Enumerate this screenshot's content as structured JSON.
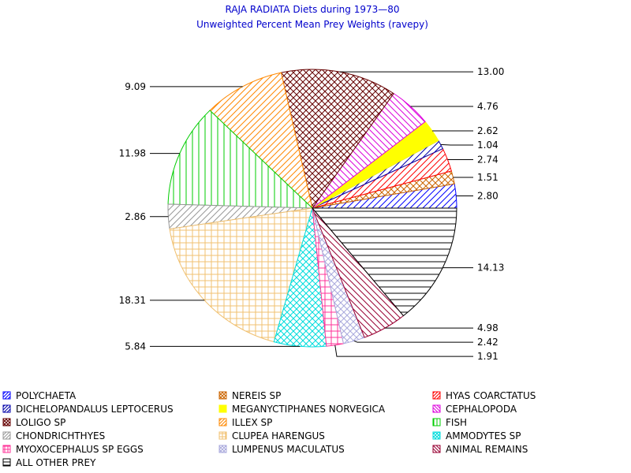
{
  "chart_data": {
    "type": "pie",
    "title": "RAJA RADIATA Diets during 1973—80",
    "subtitle": "Unweighted Percent Mean Prey Weights (ravepy)",
    "slices": [
      {
        "name": "POLYCHAETA",
        "value": 2.8,
        "label": "2.80",
        "color": "#0000ff",
        "pattern": "diag-up"
      },
      {
        "name": "NEREIS SP",
        "value": 1.51,
        "label": "1.51",
        "color": "#cc6600",
        "pattern": "cross-diag"
      },
      {
        "name": "HYAS COARCTATUS",
        "value": 2.74,
        "label": "2.74",
        "color": "#ff0000",
        "pattern": "diag-up"
      },
      {
        "name": "DICHELOPANDALUS LEPTOCERUS",
        "value": 1.04,
        "label": "1.04",
        "color": "#0000aa",
        "pattern": "diag-up"
      },
      {
        "name": "MEGANYCTIPHANES NORVEGICA",
        "value": 2.62,
        "label": "2.62",
        "color": "#ffff00",
        "pattern": "solid"
      },
      {
        "name": "CEPHALOPODA",
        "value": 4.76,
        "label": "4.76",
        "color": "#dd00dd",
        "pattern": "diag-down"
      },
      {
        "name": "LOLIGO SP",
        "value": 13.0,
        "label": "13.00",
        "color": "#660000",
        "pattern": "cross-diag"
      },
      {
        "name": "ILLEX SP",
        "value": 9.09,
        "label": "9.09",
        "color": "#ff8800",
        "pattern": "diag-up"
      },
      {
        "name": "FISH",
        "value": 11.98,
        "label": "11.98",
        "color": "#00cc00",
        "pattern": "vertical"
      },
      {
        "name": "CHONDRICHTHYES",
        "value": 2.86,
        "label": "2.86",
        "color": "#999999",
        "pattern": "diag-up"
      },
      {
        "name": "CLUPEA HARENGUS",
        "value": 18.31,
        "label": "18.31",
        "color": "#f0c070",
        "pattern": "grid"
      },
      {
        "name": "AMMODYTES SP",
        "value": 5.84,
        "label": "5.84",
        "color": "#00dddd",
        "pattern": "cross-diag"
      },
      {
        "name": "MYOXOCEPHALUS SP EGGS",
        "value": 1.91,
        "label": "1.91",
        "color": "#ff3399",
        "pattern": "grid"
      },
      {
        "name": "LUMPENUS MACULATUS",
        "value": 2.42,
        "label": "2.42",
        "color": "#aaaadd",
        "pattern": "cross-diag"
      },
      {
        "name": "ANIMAL REMAINS",
        "value": 4.98,
        "label": "4.98",
        "color": "#990033",
        "pattern": "diag-down"
      },
      {
        "name": "ALL OTHER PREY",
        "value": 14.13,
        "label": "14.13",
        "color": "#000000",
        "pattern": "horizontal"
      }
    ],
    "legend_position": "bottom"
  }
}
